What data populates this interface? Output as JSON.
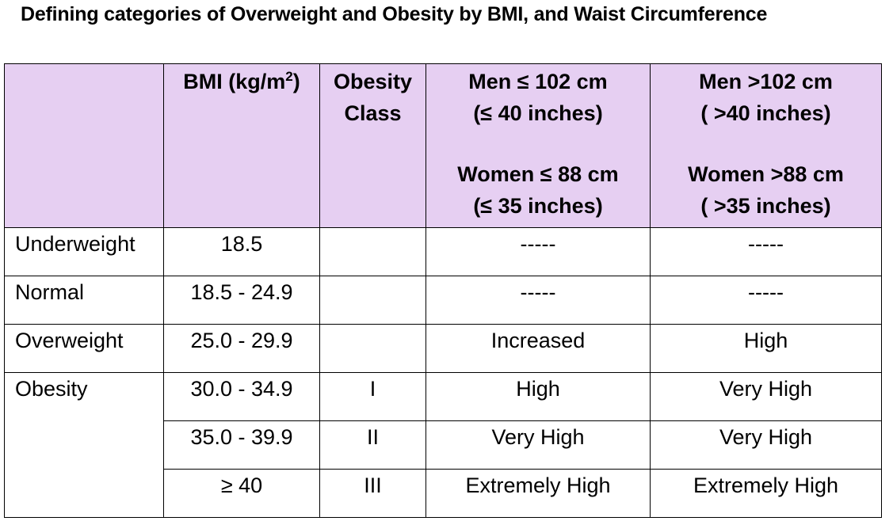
{
  "title": "Defining categories of Overweight and Obesity by BMI, and Waist Circumference",
  "header": {
    "blank": "",
    "bmi_label": "BMI (kg/m",
    "bmi_sup": "2",
    "bmi_close": ")",
    "obesity_class_line1": "Obesity",
    "obesity_class_line2": "Class",
    "low_waist": {
      "men_line1": "Men ≤ 102 cm",
      "men_line2": "(≤ 40 inches)",
      "women_line1": "Women ≤ 88 cm",
      "women_line2": "(≤ 35 inches)"
    },
    "high_waist": {
      "men_line1": "Men >102 cm",
      "men_line2": "( >40 inches)",
      "women_line1": "Women >88 cm",
      "women_line2": "( >35 inches)"
    }
  },
  "rows": [
    {
      "category": "Underweight",
      "bmi": "18.5",
      "obesity_class": "",
      "low_waist_risk": "-----",
      "high_waist_risk": "-----"
    },
    {
      "category": "Normal",
      "bmi": "18.5 - 24.9",
      "obesity_class": "",
      "low_waist_risk": "-----",
      "high_waist_risk": "-----"
    },
    {
      "category": "Overweight",
      "bmi": "25.0 - 29.9",
      "obesity_class": "",
      "low_waist_risk": "Increased",
      "high_waist_risk": "High"
    },
    {
      "category": "Obesity",
      "bmi": "30.0 - 34.9",
      "obesity_class": "I",
      "low_waist_risk": "High",
      "high_waist_risk": "Very High"
    },
    {
      "category": "",
      "bmi": "35.0 - 39.9",
      "obesity_class": "II",
      "low_waist_risk": "Very High",
      "high_waist_risk": "Very High"
    },
    {
      "category": "",
      "bmi": "≥ 40",
      "obesity_class": "III",
      "low_waist_risk": "Extremely High",
      "high_waist_risk": "Extremely High"
    }
  ],
  "colors": {
    "header_bg": "#e6cff2",
    "border": "#000000"
  }
}
